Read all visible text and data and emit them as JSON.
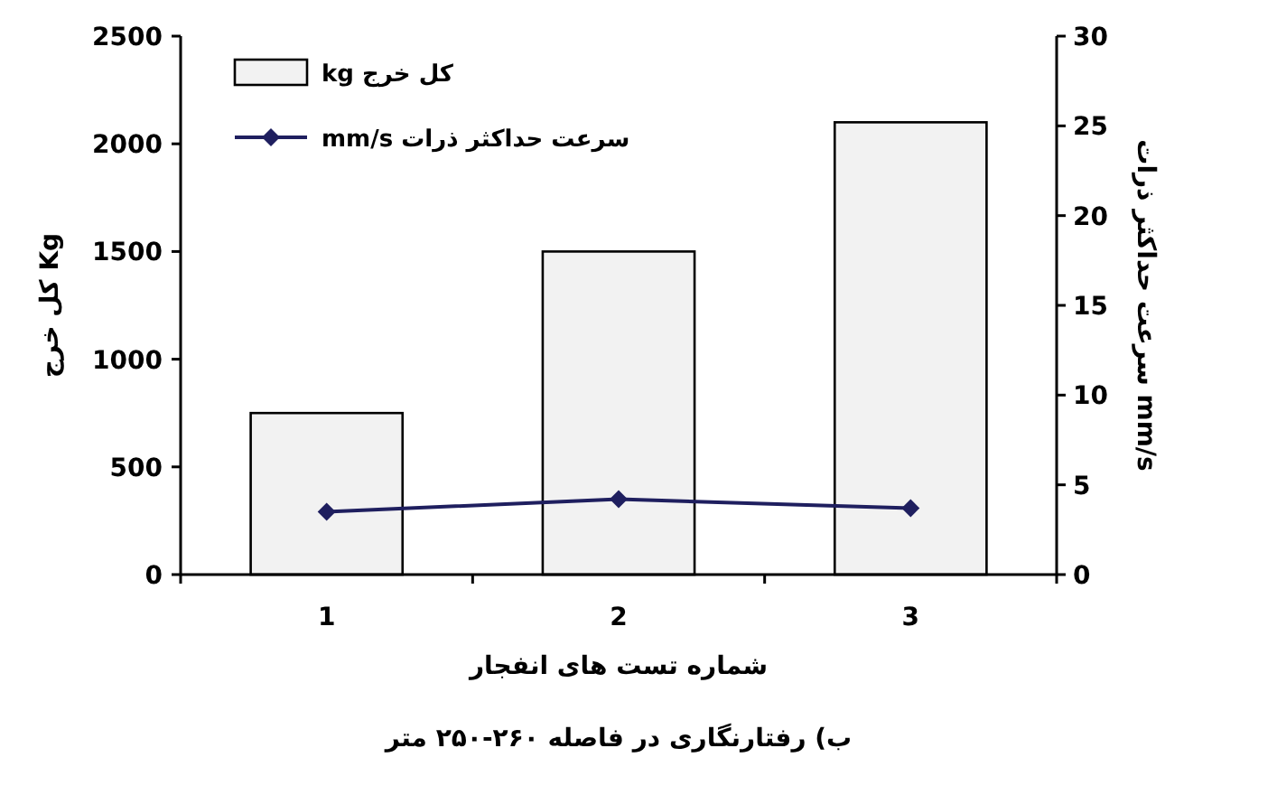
{
  "chart_data": {
    "type": "bar",
    "categories": [
      "1",
      "2",
      "3"
    ],
    "xlabel": "شماره تست های انفجار",
    "ylabel": "کل خرج Kg",
    "y2label": "سرعت حداکثر ذرات mm/s",
    "series": [
      {
        "name": "کل خرج kg",
        "color": "#f2f2f2",
        "values": [
          750,
          1500,
          2100
        ]
      },
      {
        "name": "سرعت حداکثر ذرات mm/s",
        "type": "line",
        "axis": "y2",
        "color": "#1f1f5f",
        "values": [
          3.5,
          4.2,
          3.7
        ]
      }
    ],
    "ylim": [
      0,
      2500
    ],
    "yticks": [
      0,
      500,
      1000,
      1500,
      2000,
      2500
    ],
    "y2lim": [
      0,
      30
    ],
    "y2ticks": [
      0,
      5,
      10,
      15,
      20,
      25,
      30
    ],
    "marker": "diamond",
    "legend": "top left",
    "annotations": [
      "ب) رفتارنگاری در فاصله ۲۶۰-۲۵۰ متر"
    ]
  }
}
